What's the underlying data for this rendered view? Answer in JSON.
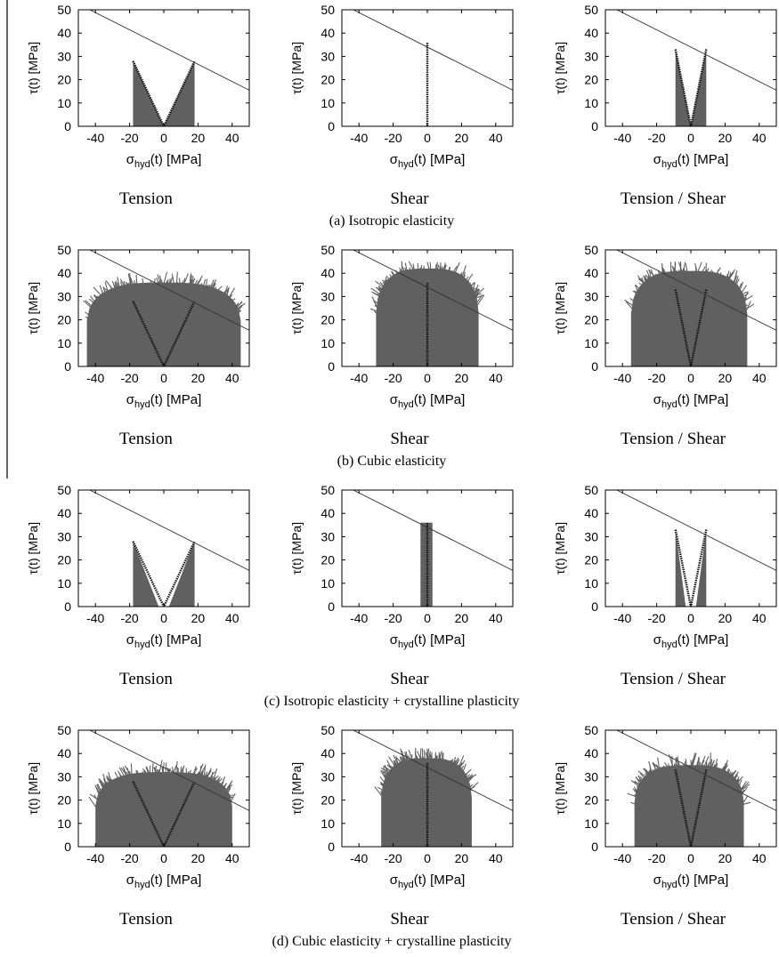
{
  "axes": {
    "ylabel_main": "τ(t)",
    "ylabel_unit": "[MPa]",
    "xlabel_main": "σ",
    "xlabel_sub": "hyd",
    "xlabel_rest": "(t) [MPa]",
    "xticks": [
      "-40",
      "-20",
      "0",
      "20",
      "40"
    ],
    "yticks": [
      "0",
      "10",
      "20",
      "30",
      "40",
      "50"
    ]
  },
  "rows": [
    {
      "caption": "(a)  Isotropic elasticity",
      "panels": [
        {
          "name": "Tension",
          "label": "Tension"
        },
        {
          "name": "Shear",
          "label": "Shear"
        },
        {
          "name": "Tension-Shear",
          "label": "Tension / Shear"
        }
      ]
    },
    {
      "caption": "(b)  Cubic elasticity",
      "panels": [
        {
          "name": "Tension",
          "label": "Tension"
        },
        {
          "name": "Shear",
          "label": "Shear"
        },
        {
          "name": "Tension-Shear",
          "label": "Tension / Shear"
        }
      ]
    },
    {
      "caption": "(c)  Isotropic elasticity + crystalline plasticity",
      "panels": [
        {
          "name": "Tension",
          "label": "Tension"
        },
        {
          "name": "Shear",
          "label": "Shear"
        },
        {
          "name": "Tension-Shear",
          "label": "Tension / Shear"
        }
      ]
    },
    {
      "caption": "(d)  Cubic elasticity + crystalline plasticity",
      "panels": [
        {
          "name": "Tension",
          "label": "Tension"
        },
        {
          "name": "Shear",
          "label": "Shear"
        },
        {
          "name": "Tension-Shear",
          "label": "Tension / Shear"
        }
      ]
    }
  ],
  "chart_data": {
    "type": "scatter",
    "xlim": [
      -50,
      50
    ],
    "ylim": [
      0,
      50
    ],
    "grid": false,
    "limit_line": {
      "x": [
        -50,
        50
      ],
      "y": [
        52.5,
        15.5
      ]
    },
    "panels": [
      {
        "row": "a",
        "load": "Tension",
        "envelope": {
          "apex_x": [
            -18,
            18
          ],
          "apex_y": 28,
          "inner_half_width": 0,
          "fill": "wedge"
        },
        "path_x": [
          -18,
          0,
          18
        ],
        "path_y": [
          28,
          0,
          28
        ]
      },
      {
        "row": "a",
        "load": "Shear",
        "envelope": {
          "apex_x": [
            0,
            0
          ],
          "apex_y": 36,
          "inner_half_width": 0,
          "fill": "line"
        },
        "path_x": [
          0,
          0
        ],
        "path_y": [
          0,
          36
        ]
      },
      {
        "row": "a",
        "load": "Tension / Shear",
        "envelope": {
          "apex_x": [
            -9,
            9
          ],
          "apex_y": 33,
          "inner_half_width": 0,
          "fill": "wedge"
        },
        "path_x": [
          -9,
          0,
          9
        ],
        "path_y": [
          33,
          0,
          33
        ]
      },
      {
        "row": "b",
        "load": "Tension",
        "envelope": {
          "x_range": [
            -45,
            45
          ],
          "y_max": 36,
          "fill": "cloud"
        },
        "path_x": [
          -18,
          0,
          18
        ],
        "path_y": [
          28,
          0,
          28
        ]
      },
      {
        "row": "b",
        "load": "Shear",
        "envelope": {
          "x_range": [
            -30,
            30
          ],
          "y_max": 42,
          "fill": "cloud"
        },
        "path_x": [
          0,
          0
        ],
        "path_y": [
          0,
          36
        ]
      },
      {
        "row": "b",
        "load": "Tension / Shear",
        "envelope": {
          "x_range": [
            -35,
            33
          ],
          "y_max": 41,
          "fill": "cloud"
        },
        "path_x": [
          -9,
          0,
          9
        ],
        "path_y": [
          33,
          0,
          33
        ]
      },
      {
        "row": "c",
        "load": "Tension",
        "envelope": {
          "apex_x": [
            -18,
            18
          ],
          "apex_y": 28,
          "inner_half_width": 3,
          "fill": "wedge"
        },
        "path_x": [
          -18,
          0,
          18
        ],
        "path_y": [
          28,
          0,
          28
        ]
      },
      {
        "row": "c",
        "load": "Shear",
        "envelope": {
          "x_range": [
            -4,
            3
          ],
          "y_max": 36,
          "fill": "band"
        },
        "path_x": [
          0,
          0
        ],
        "path_y": [
          0,
          36
        ]
      },
      {
        "row": "c",
        "load": "Tension / Shear",
        "envelope": {
          "apex_x": [
            -9,
            9
          ],
          "apex_y": 33,
          "inner_half_width": 3,
          "fill": "wedge"
        },
        "path_x": [
          -9,
          0,
          9
        ],
        "path_y": [
          33,
          0,
          33
        ]
      },
      {
        "row": "d",
        "load": "Tension",
        "envelope": {
          "x_range": [
            -40,
            40
          ],
          "y_max": 32,
          "fill": "cloud"
        },
        "path_x": [
          -18,
          0,
          18
        ],
        "path_y": [
          28,
          0,
          28
        ]
      },
      {
        "row": "d",
        "load": "Shear",
        "envelope": {
          "x_range": [
            -27,
            26
          ],
          "y_max": 38,
          "fill": "cloud"
        },
        "path_x": [
          0,
          0
        ],
        "path_y": [
          0,
          36
        ]
      },
      {
        "row": "d",
        "load": "Tension / Shear",
        "envelope": {
          "x_range": [
            -33,
            31
          ],
          "y_max": 35,
          "fill": "cloud"
        },
        "path_x": [
          -9,
          0,
          9
        ],
        "path_y": [
          33,
          0,
          33
        ]
      }
    ]
  },
  "colors": {
    "fill": "#606060",
    "path": "#141414",
    "axis": "#000000",
    "line": "#333333"
  }
}
